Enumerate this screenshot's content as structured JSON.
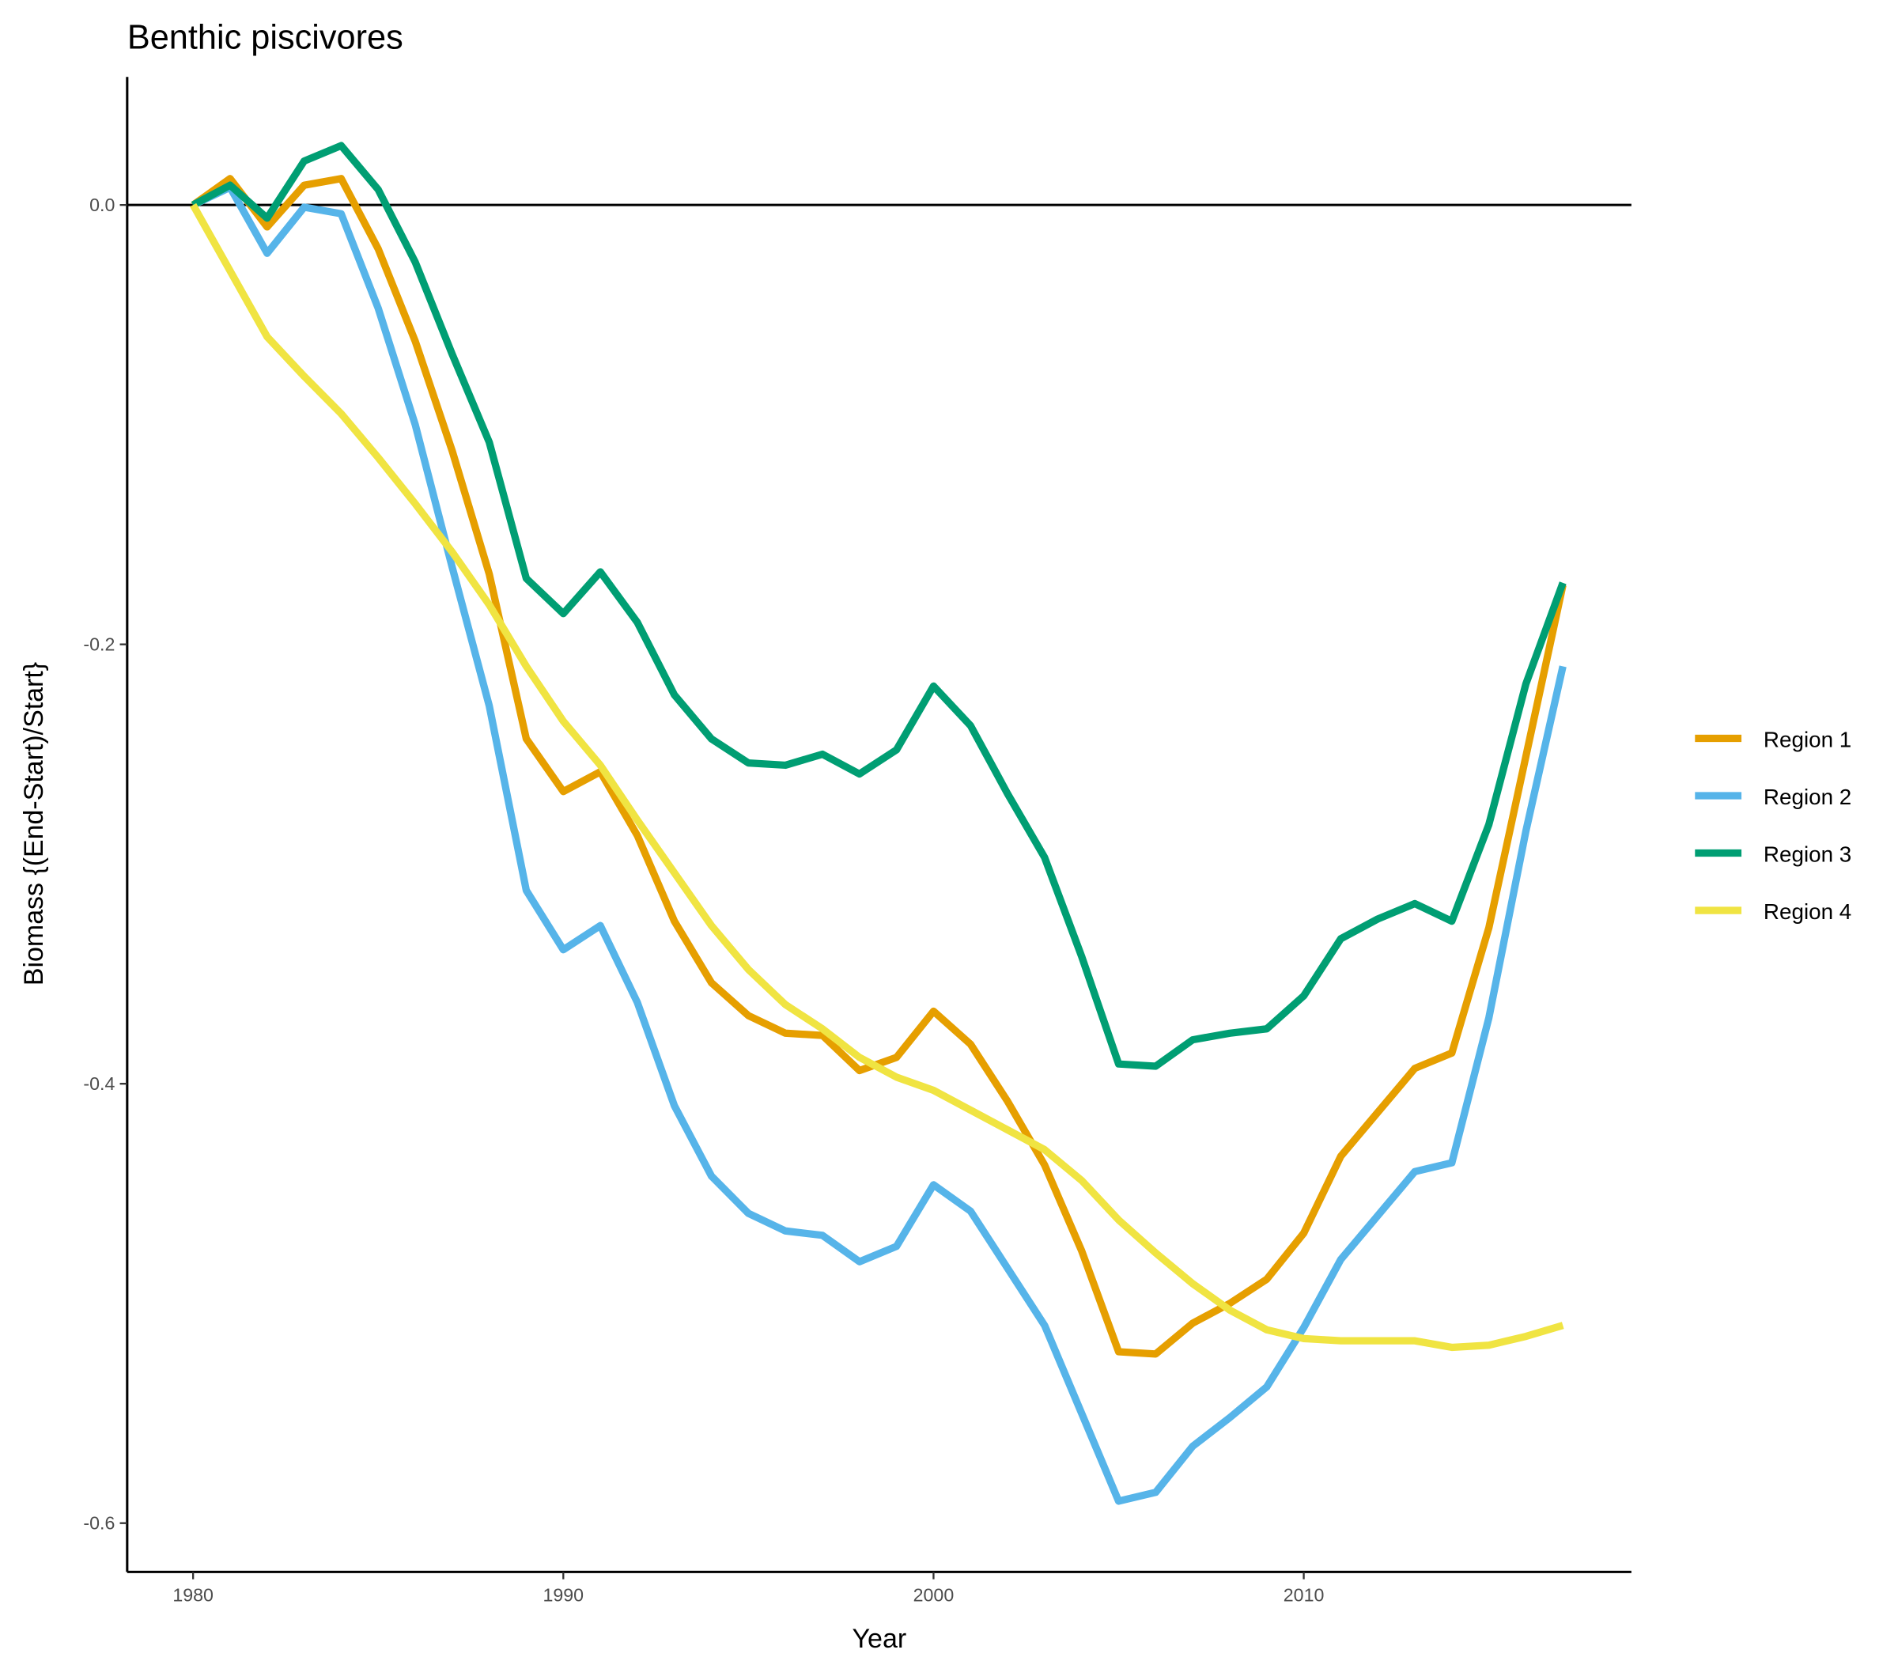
{
  "chart_data": {
    "type": "line",
    "title": "Benthic piscivores",
    "x_label": "Year",
    "y_label": "Biomass {(End-Start)/Start}",
    "x": [
      1980,
      1981,
      1982,
      1983,
      1984,
      1985,
      1986,
      1987,
      1988,
      1989,
      1990,
      1991,
      1992,
      1993,
      1994,
      1995,
      1996,
      1997,
      1998,
      1999,
      2000,
      2001,
      2002,
      2003,
      2004,
      2005,
      2006,
      2007,
      2008,
      2009,
      2010,
      2011,
      2012,
      2013,
      2014,
      2015,
      2016,
      2017
    ],
    "series": [
      {
        "name": "Region 1",
        "color": "#E69F00",
        "values": [
          0,
          0.012,
          -0.01,
          0.009,
          0.012,
          -0.02,
          -0.062,
          -0.112,
          -0.168,
          -0.243,
          -0.267,
          -0.258,
          -0.287,
          -0.326,
          -0.354,
          -0.369,
          -0.377,
          -0.378,
          -0.394,
          -0.388,
          -0.367,
          -0.382,
          -0.408,
          -0.437,
          -0.476,
          -0.522,
          -0.523,
          -0.509,
          -0.5,
          -0.489,
          -0.468,
          -0.433,
          -0.413,
          -0.393,
          -0.386,
          -0.329,
          -0.251,
          -0.173
        ]
      },
      {
        "name": "Region 2",
        "color": "#56B4E9",
        "values": [
          0,
          0.008,
          -0.022,
          -0.001,
          -0.004,
          -0.047,
          -0.1,
          -0.165,
          -0.228,
          -0.312,
          -0.339,
          -0.328,
          -0.363,
          -0.41,
          -0.442,
          -0.459,
          -0.467,
          -0.469,
          -0.481,
          -0.474,
          -0.446,
          -0.458,
          -0.484,
          -0.51,
          -0.55,
          -0.59,
          -0.586,
          -0.565,
          -0.552,
          -0.538,
          -0.511,
          -0.48,
          -0.46,
          -0.44,
          -0.436,
          -0.37,
          -0.285,
          -0.21
        ]
      },
      {
        "name": "Region 3",
        "color": "#009E73",
        "values": [
          0,
          0.009,
          -0.006,
          0.02,
          0.027,
          0.007,
          -0.026,
          -0.068,
          -0.108,
          -0.17,
          -0.186,
          -0.167,
          -0.19,
          -0.223,
          -0.243,
          -0.254,
          -0.255,
          -0.25,
          -0.259,
          -0.248,
          -0.219,
          -0.237,
          -0.268,
          -0.297,
          -0.342,
          -0.391,
          -0.392,
          -0.38,
          -0.377,
          -0.375,
          -0.36,
          -0.334,
          -0.325,
          -0.318,
          -0.326,
          -0.282,
          -0.218,
          -0.172
        ]
      },
      {
        "name": "Region 4",
        "color": "#F0E442",
        "values": [
          0,
          -0.03,
          -0.06,
          -0.078,
          -0.095,
          -0.115,
          -0.136,
          -0.158,
          -0.182,
          -0.21,
          -0.235,
          -0.255,
          -0.28,
          -0.304,
          -0.328,
          -0.348,
          -0.364,
          -0.375,
          -0.388,
          -0.397,
          -0.403,
          -0.412,
          -0.421,
          -0.43,
          -0.444,
          -0.462,
          -0.477,
          -0.491,
          -0.503,
          -0.512,
          -0.516,
          -0.517,
          -0.517,
          -0.517,
          -0.52,
          -0.519,
          -0.515,
          -0.51
        ]
      }
    ],
    "xlim": [
      1978.22,
      2018.85
    ],
    "ylim": [
      -0.6222,
      0.0583
    ],
    "xticks": [
      1980,
      1990,
      2000,
      2010
    ],
    "yticks": [
      {
        "value": 0,
        "label": "0.0"
      },
      -0.2,
      -0.4,
      -0.6
    ],
    "hline": 0,
    "grid": false,
    "legend_position": "right"
  }
}
